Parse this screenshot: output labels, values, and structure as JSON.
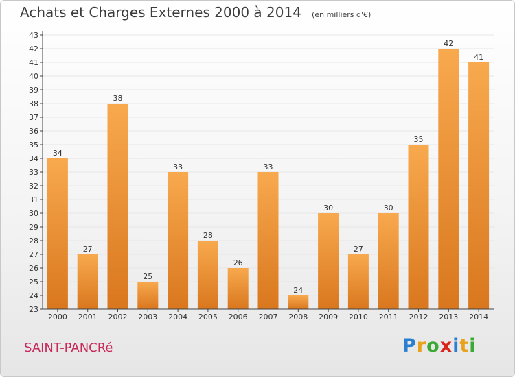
{
  "header": {
    "title": "Achats et Charges Externes 2000 à 2014",
    "subtitle": "(en milliers d'€)"
  },
  "footer": {
    "commune": "SAINT-PANCRé",
    "brand": [
      "P",
      "r",
      "o",
      "x",
      "i",
      "t",
      "i"
    ],
    "brand_colors": [
      "#2b7fd0",
      "#e8a21c",
      "#3aaa35",
      "#d9241b",
      "#2b7fd0",
      "#e8a21c",
      "#3aaa35"
    ]
  },
  "colors": {
    "bar_light": "#f8a94e",
    "bar_dark": "#d9771e",
    "axis": "#444444",
    "grid": "#e6e6e6"
  },
  "chart_data": {
    "type": "bar",
    "title": "Achats et Charges Externes 2000 à 2014",
    "subtitle": "(en milliers d'€)",
    "xlabel": "",
    "ylabel": "",
    "categories": [
      "2000",
      "2001",
      "2002",
      "2003",
      "2004",
      "2005",
      "2006",
      "2007",
      "2008",
      "2009",
      "2010",
      "2011",
      "2012",
      "2013",
      "2014"
    ],
    "values": [
      34,
      27,
      38,
      25,
      33,
      28,
      26,
      33,
      24,
      30,
      27,
      30,
      35,
      42,
      41
    ],
    "ylim": [
      23,
      43
    ],
    "yticks": [
      23,
      24,
      25,
      26,
      27,
      28,
      29,
      30,
      31,
      32,
      33,
      34,
      35,
      36,
      37,
      38,
      39,
      40,
      41,
      42,
      43
    ],
    "grid": true,
    "legend": "none"
  }
}
